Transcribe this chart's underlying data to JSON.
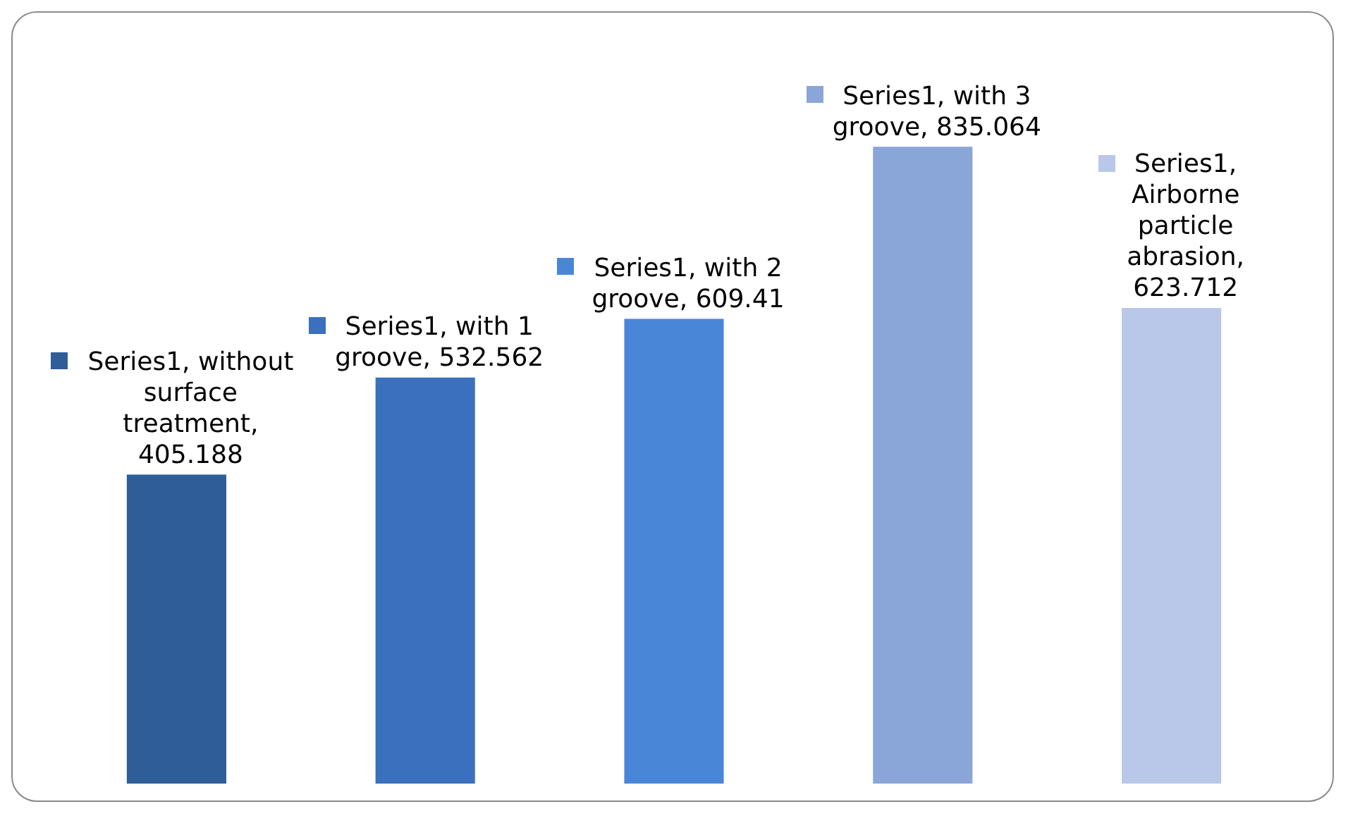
{
  "chart_data": {
    "type": "bar",
    "categories": [
      null,
      null,
      null,
      null,
      null
    ],
    "series": [
      {
        "colors": [
          "#2f5d98",
          "#3a70bd",
          "#4a86d8",
          "#8aa6d8",
          "#b9c8e8"
        ],
        "values": [
          405.188,
          532.562,
          609.41,
          835.064,
          623.712
        ],
        "value_labels": [
          "Series1, without surface treatment, 405.188",
          "Series1, with 1 groove, 532.562",
          "Series1, with 2 groove, 609.41",
          "Series1, with 3 groove, 835.064",
          "Series1, Airborne particle abrasion, 623.712"
        ]
      }
    ],
    "tick_labels": false,
    "grid": false,
    "legend": false
  }
}
